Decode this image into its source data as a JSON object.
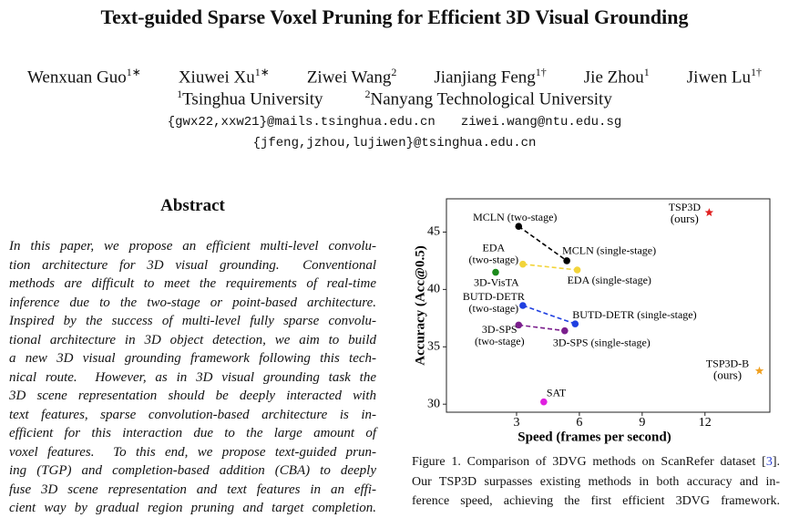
{
  "header": {
    "title": "Text-guided Sparse Voxel Pruning for Efficient 3D Visual Grounding",
    "authors": [
      {
        "name": "Wenxuan Guo",
        "mark": "1∗"
      },
      {
        "name": "Xiuwei Xu",
        "mark": "1∗"
      },
      {
        "name": "Ziwei Wang",
        "mark": "2"
      },
      {
        "name": "Jianjiang Feng",
        "mark": "1†"
      },
      {
        "name": "Jie Zhou",
        "mark": "1"
      },
      {
        "name": "Jiwen Lu",
        "mark": "1†"
      }
    ],
    "affiliations": [
      {
        "mark": "1",
        "name": "Tsinghua University"
      },
      {
        "mark": "2",
        "name": "Nanyang Technological University"
      }
    ],
    "emails": [
      "{gwx22,xxw21}@mails.tsinghua.edu.cn",
      "ziwei.wang@ntu.edu.sg",
      "{jfeng,jzhou,lujiwen}@tsinghua.edu.cn"
    ]
  },
  "abstract": {
    "heading": "Abstract",
    "lines": [
      "In this paper, we propose an efficient multi-level convolu-",
      "tion architecture for 3D visual grounding.  Conventional",
      "methods are difficult to meet the requirements of real-time",
      "inference due to the two-stage or point-based architecture.",
      "Inspired by the success of multi-level fully sparse convolu-",
      "tional architecture in 3D object detection, we aim to build",
      "a new 3D visual grounding framework following this tech-",
      "nical route.  However, as in 3D visual grounding task the",
      "3D scene representation should be deeply interacted with",
      "text features, sparse convolution-based architecture is in-",
      "efficient for this interaction due to the large amount of",
      "voxel features.  To this end, we propose text-guided prun-",
      "ing (TGP) and completion-based addition (CBA) to deeply",
      "fuse 3D scene representation and text features in an effi-",
      "cient way by gradual region pruning and target completion."
    ]
  },
  "chart_data": {
    "type": "scatter",
    "xlabel": "Speed (frames per second)",
    "ylabel": "Accuracy (Acc@0.5)",
    "xlim": [
      -0.35,
      15.1
    ],
    "ylim": [
      29.3,
      47.9
    ],
    "xticks": [
      3,
      6,
      9,
      12
    ],
    "yticks": [
      30,
      35,
      40,
      45
    ],
    "series": [
      {
        "color": "#000000",
        "marker": "circle",
        "connected": true,
        "x": [
          3.1,
          5.4
        ],
        "values": [
          45.5,
          42.5
        ],
        "point_labels": [
          [
            "MCLN (two-stage)"
          ],
          [
            "MCLN (single-stage)"
          ]
        ]
      },
      {
        "color": "#f2d43a",
        "marker": "circle",
        "connected": true,
        "x": [
          3.3,
          5.9
        ],
        "values": [
          42.2,
          41.7
        ],
        "point_labels": [
          [
            "EDA",
            "(two-stage)"
          ],
          [
            "EDA (single-stage)"
          ]
        ]
      },
      {
        "color": "#1b8a1b",
        "marker": "circle",
        "connected": false,
        "x": [
          2.0
        ],
        "values": [
          41.5
        ],
        "point_labels": [
          [
            "3D-VisTA"
          ]
        ]
      },
      {
        "color": "#1f3fe0",
        "marker": "circle",
        "connected": true,
        "x": [
          3.3,
          5.8
        ],
        "values": [
          38.6,
          37.0
        ],
        "point_labels": [
          [
            "BUTD-DETR",
            "(two-stage)"
          ],
          [
            "BUTD-DETR (single-stage)"
          ]
        ]
      },
      {
        "color": "#7a1e8c",
        "marker": "circle",
        "connected": true,
        "x": [
          3.1,
          5.3
        ],
        "values": [
          36.9,
          36.4
        ],
        "point_labels": [
          [
            "3D-SPS",
            "(two-stage)"
          ],
          [
            "3D-SPS (single-stage)"
          ]
        ]
      },
      {
        "color": "#e020e0",
        "marker": "circle",
        "connected": false,
        "x": [
          4.3
        ],
        "values": [
          30.2
        ],
        "point_labels": [
          [
            "SAT"
          ]
        ]
      },
      {
        "color": "#e02020",
        "marker": "star",
        "connected": false,
        "x": [
          12.2
        ],
        "values": [
          46.7
        ],
        "point_labels": [
          [
            "TSP3D",
            "(ours)"
          ]
        ]
      },
      {
        "color": "#f0a020",
        "marker": "star",
        "connected": false,
        "x": [
          14.6
        ],
        "values": [
          32.9
        ],
        "point_labels": [
          [
            "TSP3D-B",
            "(ours)"
          ]
        ]
      }
    ]
  },
  "caption": {
    "first_line": [
      "Figure 1. Comparison of 3DVG methods on ScanRefer dataset [",
      "3",
      "]."
    ],
    "lines": [
      "Our TSP3D surpasses existing methods in both accuracy and in-",
      "ference speed, achieving the first efficient 3DVG framework."
    ]
  }
}
